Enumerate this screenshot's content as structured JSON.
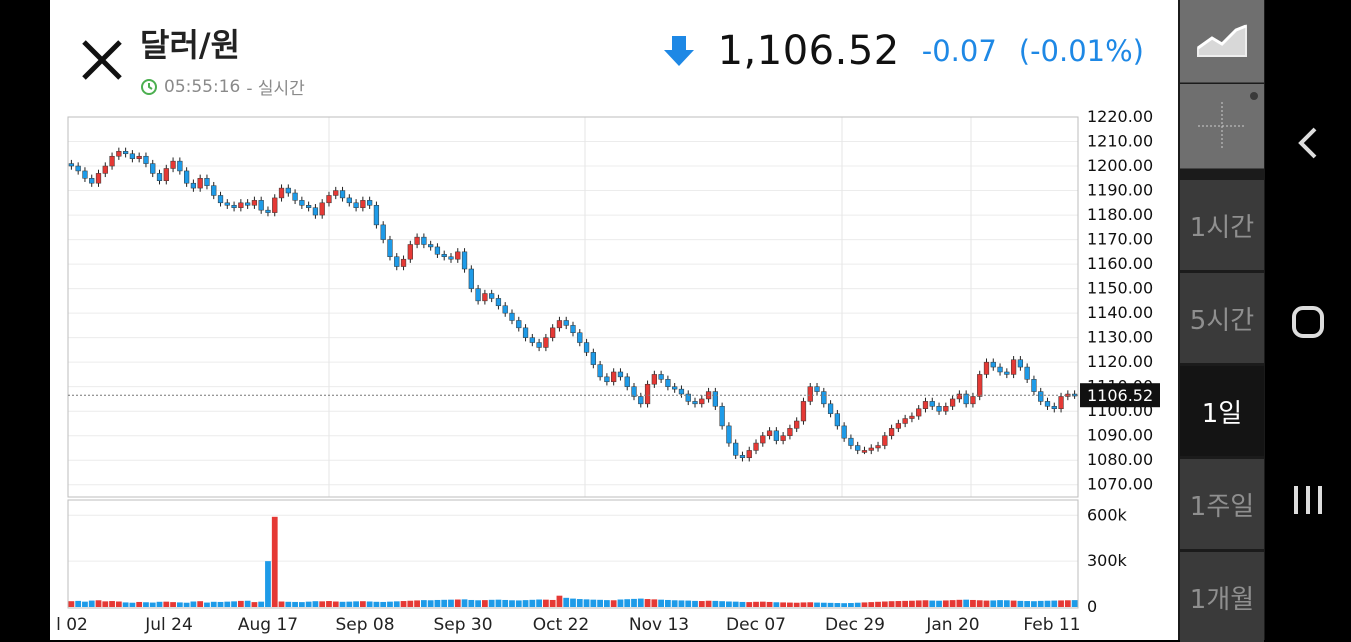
{
  "header": {
    "title": "달러/원",
    "time": "05:55:16",
    "time_suffix": "- 실시간",
    "price": "1,106.52",
    "change": "-0.07",
    "change_pct": "(-0.01%)",
    "change_color": "#1e88e5"
  },
  "sidebar": {
    "tools": [
      "chart-type-icon",
      "crosshair-icon"
    ],
    "periods": [
      {
        "label": "1시간",
        "active": false
      },
      {
        "label": "5시간",
        "active": false
      },
      {
        "label": "1일",
        "active": true
      },
      {
        "label": "1주일",
        "active": false
      },
      {
        "label": "1개월",
        "active": false
      }
    ]
  },
  "navbar": [
    "back-icon",
    "home-icon",
    "recents-icon"
  ],
  "chart_data": {
    "type": "candlestick",
    "current_price": 1106.52,
    "current_price_label": "1106.52",
    "ylim": [
      1065,
      1220
    ],
    "y_ticks": [
      "1220.00",
      "1210.00",
      "1200.00",
      "1190.00",
      "1180.00",
      "1170.00",
      "1160.00",
      "1150.00",
      "1140.00",
      "1130.00",
      "1120.00",
      "1110.00",
      "1100.00",
      "1090.00",
      "1080.00",
      "1070.00"
    ],
    "x_ticks": [
      "l 02",
      "Jul 24",
      "Aug 17",
      "Sep 08",
      "Sep 30",
      "Oct 22",
      "Nov 13",
      "Dec 07",
      "Dec 29",
      "Jan 20",
      "Feb 11"
    ],
    "up_color": "#e53935",
    "down_color": "#1e9be8",
    "close_series": [
      1200,
      1198,
      1195,
      1193,
      1197,
      1200,
      1204,
      1206,
      1205,
      1203,
      1204,
      1201,
      1197,
      1194,
      1199,
      1202,
      1198,
      1193,
      1191,
      1195,
      1192,
      1188,
      1185,
      1184,
      1183,
      1185,
      1184,
      1186,
      1182,
      1181,
      1187,
      1191,
      1189,
      1186,
      1184,
      1183,
      1180,
      1185,
      1188,
      1190,
      1187,
      1185,
      1183,
      1186,
      1184,
      1176,
      1170,
      1163,
      1159,
      1162,
      1168,
      1171,
      1168,
      1167,
      1164,
      1163,
      1162,
      1165,
      1158,
      1150,
      1145,
      1148,
      1146,
      1143,
      1140,
      1137,
      1134,
      1130,
      1128,
      1126,
      1130,
      1134,
      1137,
      1135,
      1132,
      1128,
      1124,
      1119,
      1114,
      1112,
      1116,
      1114,
      1110,
      1106,
      1103,
      1111,
      1115,
      1113,
      1110,
      1109,
      1107,
      1104,
      1103,
      1105,
      1108,
      1102,
      1094,
      1087,
      1082,
      1081,
      1084,
      1087,
      1090,
      1092,
      1088,
      1090,
      1093,
      1096,
      1104,
      1110,
      1108,
      1103,
      1099,
      1094,
      1089,
      1086,
      1084,
      1084,
      1085,
      1086,
      1090,
      1093,
      1095,
      1097,
      1098,
      1101,
      1104,
      1102,
      1100,
      1102,
      1105,
      1107,
      1103,
      1106,
      1115,
      1120,
      1118,
      1116,
      1115,
      1121,
      1118,
      1113,
      1108,
      1104,
      1102,
      1101,
      1106,
      1107,
      1106.52
    ],
    "volume_series": [
      38000,
      40000,
      35000,
      42000,
      44000,
      37000,
      39000,
      36000,
      30000,
      28000,
      33000,
      31000,
      29000,
      34000,
      35000,
      32000,
      30000,
      28000,
      36000,
      38000,
      29000,
      34000,
      33000,
      35000,
      37000,
      40000,
      41000,
      32000,
      35000,
      300000,
      590000,
      36000,
      34000,
      33000,
      32000,
      35000,
      38000,
      37000,
      39000,
      36000,
      34000,
      35000,
      37000,
      38000,
      36000,
      34000,
      33000,
      35000,
      37000,
      39000,
      41000,
      43000,
      45000,
      44000,
      46000,
      47000,
      48000,
      49000,
      50000,
      46000,
      44000,
      45000,
      47000,
      48000,
      46000,
      44000,
      43000,
      45000,
      47000,
      49000,
      48000,
      46000,
      74000,
      60000,
      55000,
      52000,
      50000,
      48000,
      47000,
      45000,
      44000,
      49000,
      51000,
      53000,
      55000,
      52000,
      50000,
      48000,
      46000,
      44000,
      43000,
      42000,
      40000,
      39000,
      41000,
      40000,
      38000,
      36000,
      35000,
      33000,
      32000,
      34000,
      35000,
      33000,
      31000,
      30000,
      29000,
      28000,
      30000,
      31000,
      29000,
      28000,
      27000,
      26000,
      25000,
      26000,
      28000,
      30000,
      32000,
      34000,
      36000,
      38000,
      39000,
      40000,
      41000,
      43000,
      44000,
      42000,
      41000,
      43000,
      45000,
      47000,
      48000,
      46000,
      44000,
      42000,
      43000,
      45000,
      44000,
      42000,
      40000,
      39000,
      38000,
      40000,
      41000,
      42000,
      43000,
      44000,
      45000
    ],
    "vol_ylim": [
      0,
      700000
    ],
    "vol_ticks": [
      "600k",
      "300k",
      "0"
    ]
  }
}
